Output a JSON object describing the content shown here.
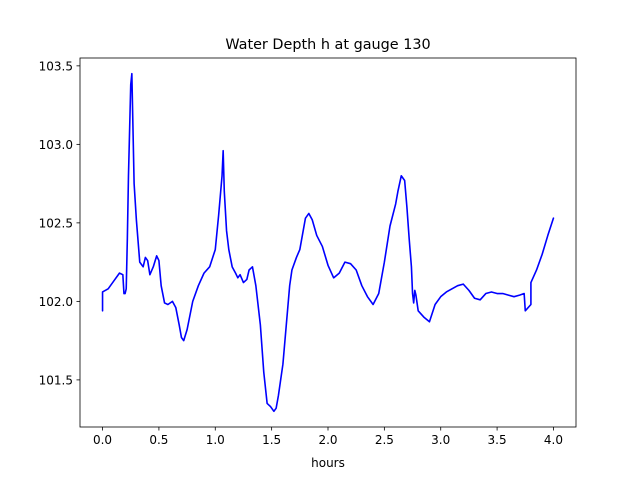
{
  "chart_data": {
    "type": "line",
    "title": "Water Depth h at gauge 130",
    "xlabel": "hours",
    "ylabel": "",
    "xlim": [
      -0.2,
      4.2
    ],
    "ylim": [
      101.2,
      103.55
    ],
    "xticks": [
      0.0,
      0.5,
      1.0,
      1.5,
      2.0,
      2.5,
      3.0,
      3.5,
      4.0
    ],
    "xtick_labels": [
      "0.0",
      "0.5",
      "1.0",
      "1.5",
      "2.0",
      "2.5",
      "3.0",
      "3.5",
      "4.0"
    ],
    "yticks": [
      101.5,
      102.0,
      102.5,
      103.0,
      103.5
    ],
    "ytick_labels": [
      "101.5",
      "102.0",
      "102.5",
      "103.0",
      "103.5"
    ],
    "grid": false,
    "series": [
      {
        "color": "#0000ff",
        "x": [
          0.0,
          0.0,
          0.05,
          0.1,
          0.15,
          0.18,
          0.19,
          0.2,
          0.21,
          0.22,
          0.23,
          0.25,
          0.26,
          0.27,
          0.28,
          0.3,
          0.33,
          0.36,
          0.38,
          0.4,
          0.42,
          0.45,
          0.48,
          0.5,
          0.52,
          0.55,
          0.58,
          0.62,
          0.65,
          0.68,
          0.7,
          0.72,
          0.75,
          0.8,
          0.85,
          0.9,
          0.95,
          1.0,
          1.03,
          1.06,
          1.07,
          1.08,
          1.1,
          1.12,
          1.15,
          1.18,
          1.2,
          1.22,
          1.25,
          1.28,
          1.3,
          1.33,
          1.36,
          1.4,
          1.43,
          1.46,
          1.49,
          1.52,
          1.54,
          1.56,
          1.6,
          1.63,
          1.66,
          1.68,
          1.72,
          1.75,
          1.8,
          1.83,
          1.86,
          1.9,
          1.95,
          2.0,
          2.05,
          2.1,
          2.15,
          2.2,
          2.25,
          2.3,
          2.35,
          2.4,
          2.45,
          2.5,
          2.55,
          2.6,
          2.62,
          2.65,
          2.68,
          2.7,
          2.72,
          2.74,
          2.75,
          2.76,
          2.77,
          2.78,
          2.8,
          2.85,
          2.9,
          2.95,
          3.0,
          3.05,
          3.1,
          3.15,
          3.2,
          3.25,
          3.3,
          3.35,
          3.4,
          3.45,
          3.5,
          3.55,
          3.6,
          3.65,
          3.7,
          3.74,
          3.75,
          3.8,
          3.8,
          3.85,
          3.9,
          3.95,
          4.0
        ],
        "y": [
          101.94,
          102.06,
          102.08,
          102.13,
          102.18,
          102.17,
          102.05,
          102.05,
          102.08,
          102.4,
          102.8,
          103.38,
          103.45,
          103.1,
          102.75,
          102.52,
          102.25,
          102.22,
          102.28,
          102.26,
          102.17,
          102.22,
          102.29,
          102.26,
          102.1,
          101.99,
          101.98,
          102.0,
          101.96,
          101.85,
          101.77,
          101.75,
          101.82,
          102.0,
          102.1,
          102.18,
          102.22,
          102.33,
          102.55,
          102.8,
          102.96,
          102.7,
          102.45,
          102.33,
          102.22,
          102.18,
          102.15,
          102.17,
          102.12,
          102.14,
          102.2,
          102.22,
          102.1,
          101.85,
          101.55,
          101.35,
          101.33,
          101.3,
          101.32,
          101.4,
          101.6,
          101.85,
          102.1,
          102.2,
          102.28,
          102.33,
          102.53,
          102.56,
          102.52,
          102.42,
          102.35,
          102.23,
          102.15,
          102.18,
          102.25,
          102.24,
          102.2,
          102.1,
          102.03,
          101.98,
          102.05,
          102.25,
          102.48,
          102.62,
          102.7,
          102.8,
          102.77,
          102.6,
          102.4,
          102.22,
          102.05,
          101.99,
          102.07,
          102.04,
          101.94,
          101.9,
          101.87,
          101.98,
          102.03,
          102.06,
          102.08,
          102.1,
          102.11,
          102.07,
          102.02,
          102.01,
          102.05,
          102.06,
          102.05,
          102.05,
          102.04,
          102.03,
          102.04,
          102.05,
          101.94,
          101.98,
          102.12,
          102.2,
          102.3,
          102.42,
          102.53
        ]
      }
    ]
  }
}
